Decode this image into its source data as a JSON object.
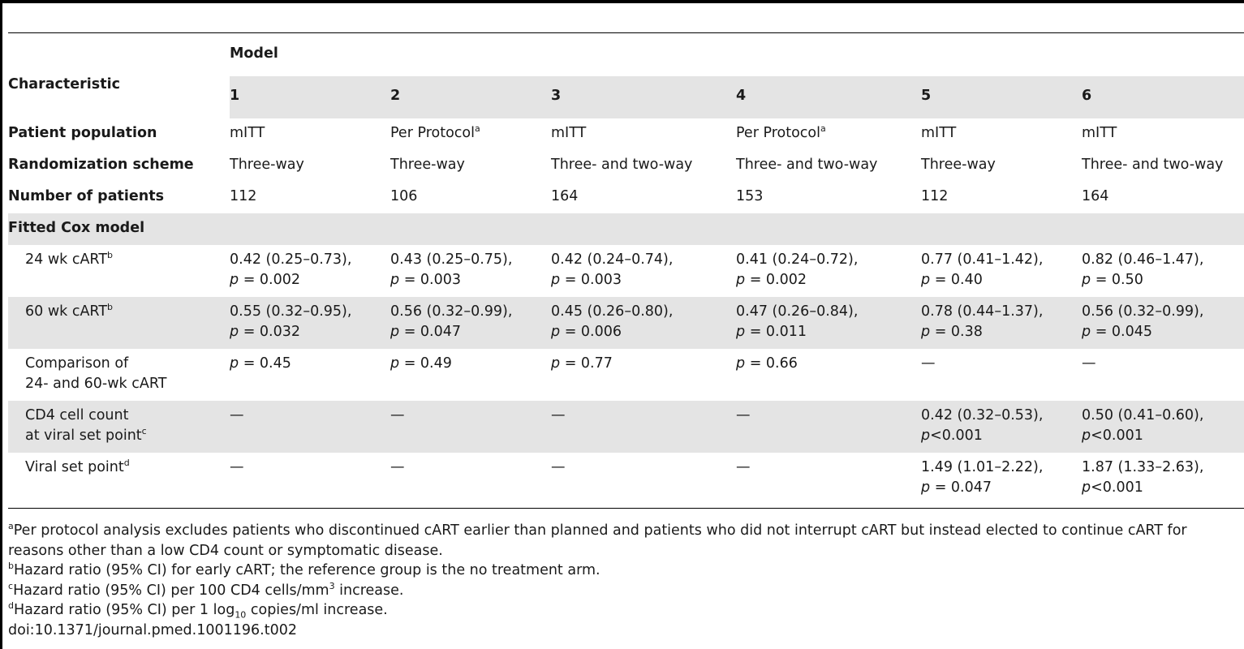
{
  "header": {
    "characteristic": "Characteristic",
    "model": "Model",
    "model_numbers": [
      "1",
      "2",
      "3",
      "4",
      "5",
      "6"
    ]
  },
  "rows": {
    "patient_population": {
      "label": "Patient population",
      "values": [
        "mITT",
        "Per Protocol",
        "mITT",
        "Per Protocol",
        "mITT",
        "mITT"
      ],
      "sup": [
        "",
        "a",
        "",
        "a",
        "",
        ""
      ]
    },
    "randomization": {
      "label": "Randomization scheme",
      "values": [
        "Three-way",
        "Three-way",
        "Three- and two-way",
        "Three- and two-way",
        "Three-way",
        "Three- and two-way"
      ]
    },
    "number": {
      "label": "Number of patients",
      "values": [
        "112",
        "106",
        "164",
        "153",
        "112",
        "164"
      ]
    },
    "fitted": {
      "label": "Fitted Cox model"
    },
    "wk24": {
      "label": "24 wk cART",
      "sup": "b",
      "values": [
        {
          "hr": "0.42 (0.25–0.73),",
          "p": "= 0.002"
        },
        {
          "hr": "0.43 (0.25–0.75),",
          "p": "= 0.003"
        },
        {
          "hr": "0.42 (0.24–0.74),",
          "p": "= 0.003"
        },
        {
          "hr": "0.41 (0.24–0.72),",
          "p": "= 0.002"
        },
        {
          "hr": "0.77 (0.41–1.42),",
          "p": "= 0.40"
        },
        {
          "hr": "0.82 (0.46–1.47),",
          "p": "= 0.50"
        }
      ]
    },
    "wk60": {
      "label": "60 wk cART",
      "sup": "b",
      "values": [
        {
          "hr": "0.55 (0.32–0.95),",
          "p": "= 0.032"
        },
        {
          "hr": "0.56 (0.32–0.99),",
          "p": "= 0.047"
        },
        {
          "hr": "0.45 (0.26–0.80),",
          "p": "= 0.006"
        },
        {
          "hr": "0.47 (0.26–0.84),",
          "p": "= 0.011"
        },
        {
          "hr": "0.78 (0.44–1.37),",
          "p": "= 0.38"
        },
        {
          "hr": "0.56 (0.32–0.99),",
          "p": "= 0.045"
        }
      ]
    },
    "comparison": {
      "label_line1": "Comparison of",
      "label_line2": "24- and 60-wk cART",
      "values": [
        "= 0.45",
        "= 0.49",
        "= 0.77",
        "= 0.66",
        "—",
        "—"
      ]
    },
    "cd4": {
      "label_line1": "CD4 cell count",
      "label_line2": "at viral set point",
      "sup": "c",
      "dashes": [
        "—",
        "—",
        "—",
        "—"
      ],
      "values": [
        {
          "hr": "0.42 (0.32–0.53),",
          "p": "<0.001"
        },
        {
          "hr": "0.50 (0.41–0.60),",
          "p": "<0.001"
        }
      ]
    },
    "viral": {
      "label": "Viral set point",
      "sup": "d",
      "dashes": [
        "—",
        "—",
        "—",
        "—"
      ],
      "values": [
        {
          "hr": "1.49 (1.01–2.22),",
          "p": "= 0.047"
        },
        {
          "hr": "1.87 (1.33–2.63),",
          "p": "<0.001"
        }
      ]
    }
  },
  "p_letter": "p",
  "footnotes": {
    "a": {
      "mark": "a",
      "text": "Per protocol analysis excludes patients who discontinued cART earlier than planned and patients who did not interrupt cART but instead elected to continue cART for reasons other than a low CD4 count or symptomatic disease."
    },
    "b": {
      "mark": "b",
      "text": "Hazard ratio (95% CI) for early cART; the reference group is the no treatment arm."
    },
    "c": {
      "mark": "c",
      "text_before": "Hazard ratio (95% CI) per 100 CD4 cells/mm",
      "sup": "3",
      "text_after": " increase."
    },
    "d": {
      "mark": "d",
      "text_before": "Hazard ratio (95% CI) per 1 log",
      "sub": "10",
      "text_after": " copies/ml increase."
    },
    "doi": "doi:10.1371/journal.pmed.1001196.t002"
  }
}
